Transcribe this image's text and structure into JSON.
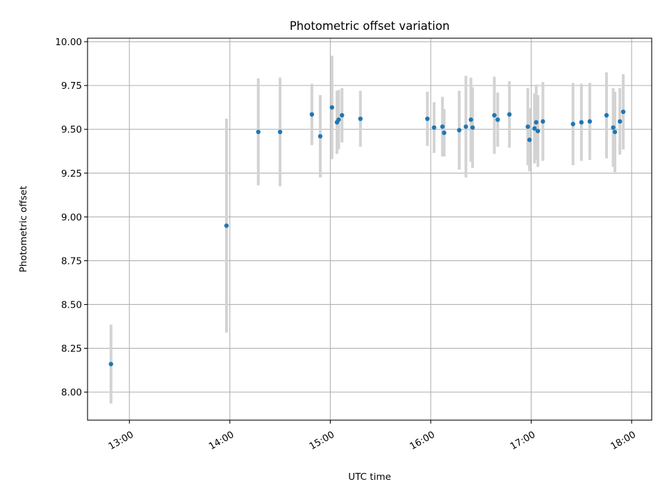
{
  "chart_data": {
    "type": "scatter",
    "title": "Photometric offset variation",
    "xlabel": "UTC time",
    "ylabel": "Photometric offset",
    "x_ticks": [
      "13:00",
      "14:00",
      "15:00",
      "16:00",
      "17:00",
      "18:00"
    ],
    "y_ticks": [
      "8.00",
      "8.25",
      "8.50",
      "8.75",
      "9.00",
      "9.25",
      "9.50",
      "9.75",
      "10.00"
    ],
    "xlim": [
      "12:35",
      "18:12"
    ],
    "ylim": [
      7.84,
      10.02
    ],
    "grid": true,
    "marker_color": "#1f77b4",
    "errorbar_color": "#d3d3d3",
    "series": [
      {
        "points": [
          {
            "x": "12:49",
            "y": 8.16,
            "yerr": 0.225
          },
          {
            "x": "13:58",
            "y": 8.95,
            "yerr": 0.61
          },
          {
            "x": "14:17",
            "y": 9.485,
            "yerr": 0.305
          },
          {
            "x": "14:30",
            "y": 9.485,
            "yerr": 0.31
          },
          {
            "x": "14:49",
            "y": 9.585,
            "yerr": 0.175
          },
          {
            "x": "14:54",
            "y": 9.46,
            "yerr": 0.235
          },
          {
            "x": "15:01",
            "y": 9.625,
            "yerr": 0.295
          },
          {
            "x": "15:04",
            "y": 9.54,
            "yerr": 0.18
          },
          {
            "x": "15:05",
            "y": 9.555,
            "yerr": 0.17
          },
          {
            "x": "15:07",
            "y": 9.58,
            "yerr": 0.155
          },
          {
            "x": "15:18",
            "y": 9.56,
            "yerr": 0.16
          },
          {
            "x": "15:58",
            "y": 9.56,
            "yerr": 0.155
          },
          {
            "x": "16:02",
            "y": 9.51,
            "yerr": 0.145
          },
          {
            "x": "16:07",
            "y": 9.515,
            "yerr": 0.17
          },
          {
            "x": "16:08",
            "y": 9.48,
            "yerr": 0.135
          },
          {
            "x": "16:17",
            "y": 9.495,
            "yerr": 0.225
          },
          {
            "x": "16:21",
            "y": 9.515,
            "yerr": 0.29
          },
          {
            "x": "16:24",
            "y": 9.555,
            "yerr": 0.24
          },
          {
            "x": "16:25",
            "y": 9.51,
            "yerr": 0.23
          },
          {
            "x": "16:38",
            "y": 9.58,
            "yerr": 0.22
          },
          {
            "x": "16:40",
            "y": 9.555,
            "yerr": 0.155
          },
          {
            "x": "16:47",
            "y": 9.585,
            "yerr": 0.19
          },
          {
            "x": "16:58",
            "y": 9.515,
            "yerr": 0.22
          },
          {
            "x": "16:59",
            "y": 9.44,
            "yerr": 0.18
          },
          {
            "x": "17:02",
            "y": 9.505,
            "yerr": 0.2
          },
          {
            "x": "17:03",
            "y": 9.54,
            "yerr": 0.215
          },
          {
            "x": "17:04",
            "y": 9.49,
            "yerr": 0.205
          },
          {
            "x": "17:07",
            "y": 9.545,
            "yerr": 0.225
          },
          {
            "x": "17:25",
            "y": 9.53,
            "yerr": 0.235
          },
          {
            "x": "17:30",
            "y": 9.54,
            "yerr": 0.22
          },
          {
            "x": "17:35",
            "y": 9.545,
            "yerr": 0.22
          },
          {
            "x": "17:45",
            "y": 9.58,
            "yerr": 0.245
          },
          {
            "x": "17:49",
            "y": 9.51,
            "yerr": 0.225
          },
          {
            "x": "17:50",
            "y": 9.485,
            "yerr": 0.23
          },
          {
            "x": "17:53",
            "y": 9.545,
            "yerr": 0.19
          },
          {
            "x": "17:55",
            "y": 9.6,
            "yerr": 0.215
          }
        ]
      }
    ]
  }
}
